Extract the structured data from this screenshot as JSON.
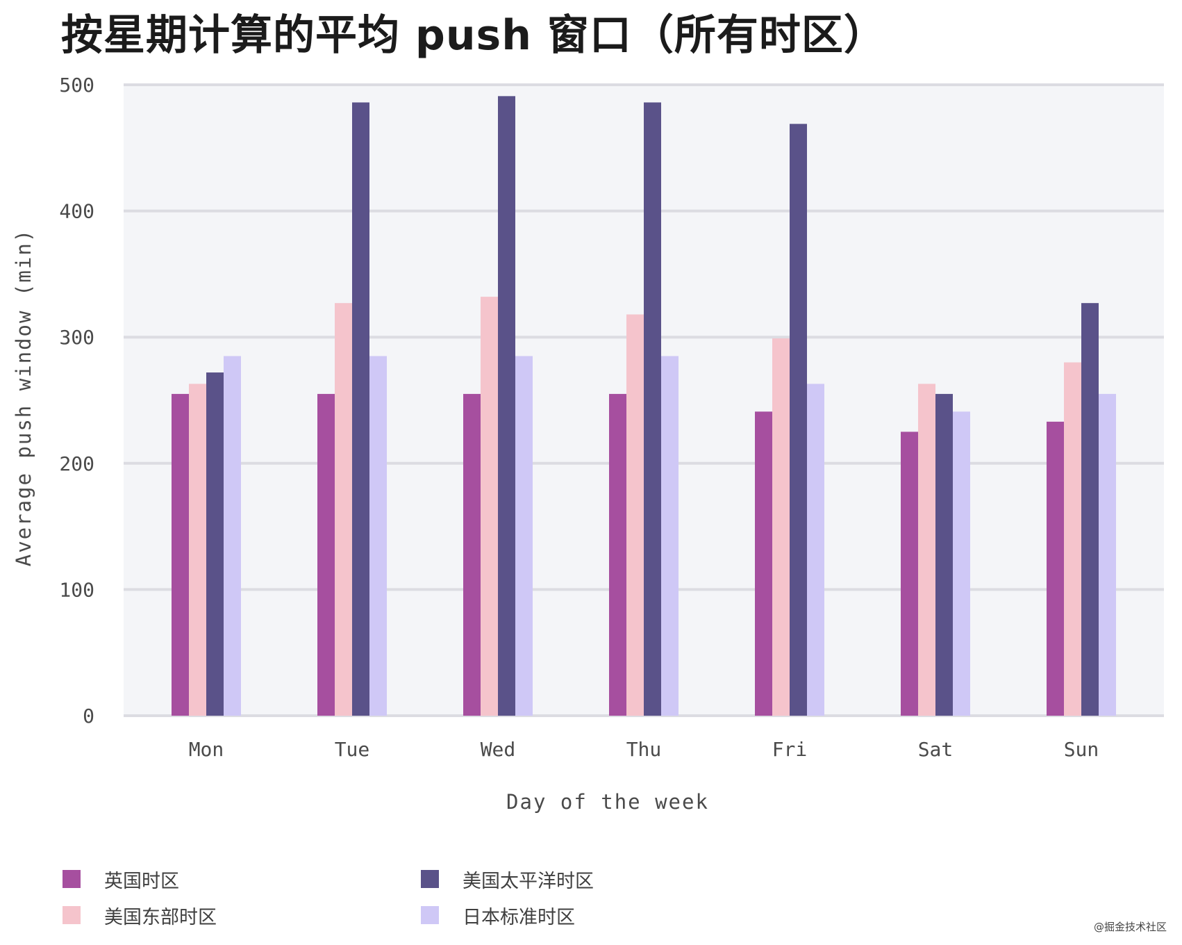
{
  "colors": {
    "plot_background": "#f4f5f8",
    "gridline": "#dcdce2",
    "series": [
      "#a64f9f",
      "#f5c4cc",
      "#5a5289",
      "#cfc8f6"
    ]
  },
  "chart_data": {
    "type": "bar",
    "title": "按星期计算的平均 push 窗口（所有时区）",
    "xlabel": "Day of the week",
    "ylabel": "Average push window (min)",
    "ylim": [
      0,
      500
    ],
    "yticks": [
      0,
      100,
      200,
      300,
      400,
      500
    ],
    "grid": true,
    "legend_position": "bottom-left",
    "categories": [
      "Mon",
      "Tue",
      "Wed",
      "Thu",
      "Fri",
      "Sat",
      "Sun"
    ],
    "series": [
      {
        "name": "英国时区",
        "values": [
          255,
          255,
          255,
          255,
          241,
          225,
          233
        ]
      },
      {
        "name": "美国东部时区",
        "values": [
          263,
          327,
          332,
          318,
          299,
          263,
          280
        ]
      },
      {
        "name": "美国太平洋时区",
        "values": [
          272,
          486,
          491,
          486,
          469,
          255,
          327
        ]
      },
      {
        "name": "日本标准时区",
        "values": [
          285,
          285,
          285,
          285,
          263,
          241,
          255
        ]
      }
    ]
  },
  "watermark": "@掘金技术社区"
}
